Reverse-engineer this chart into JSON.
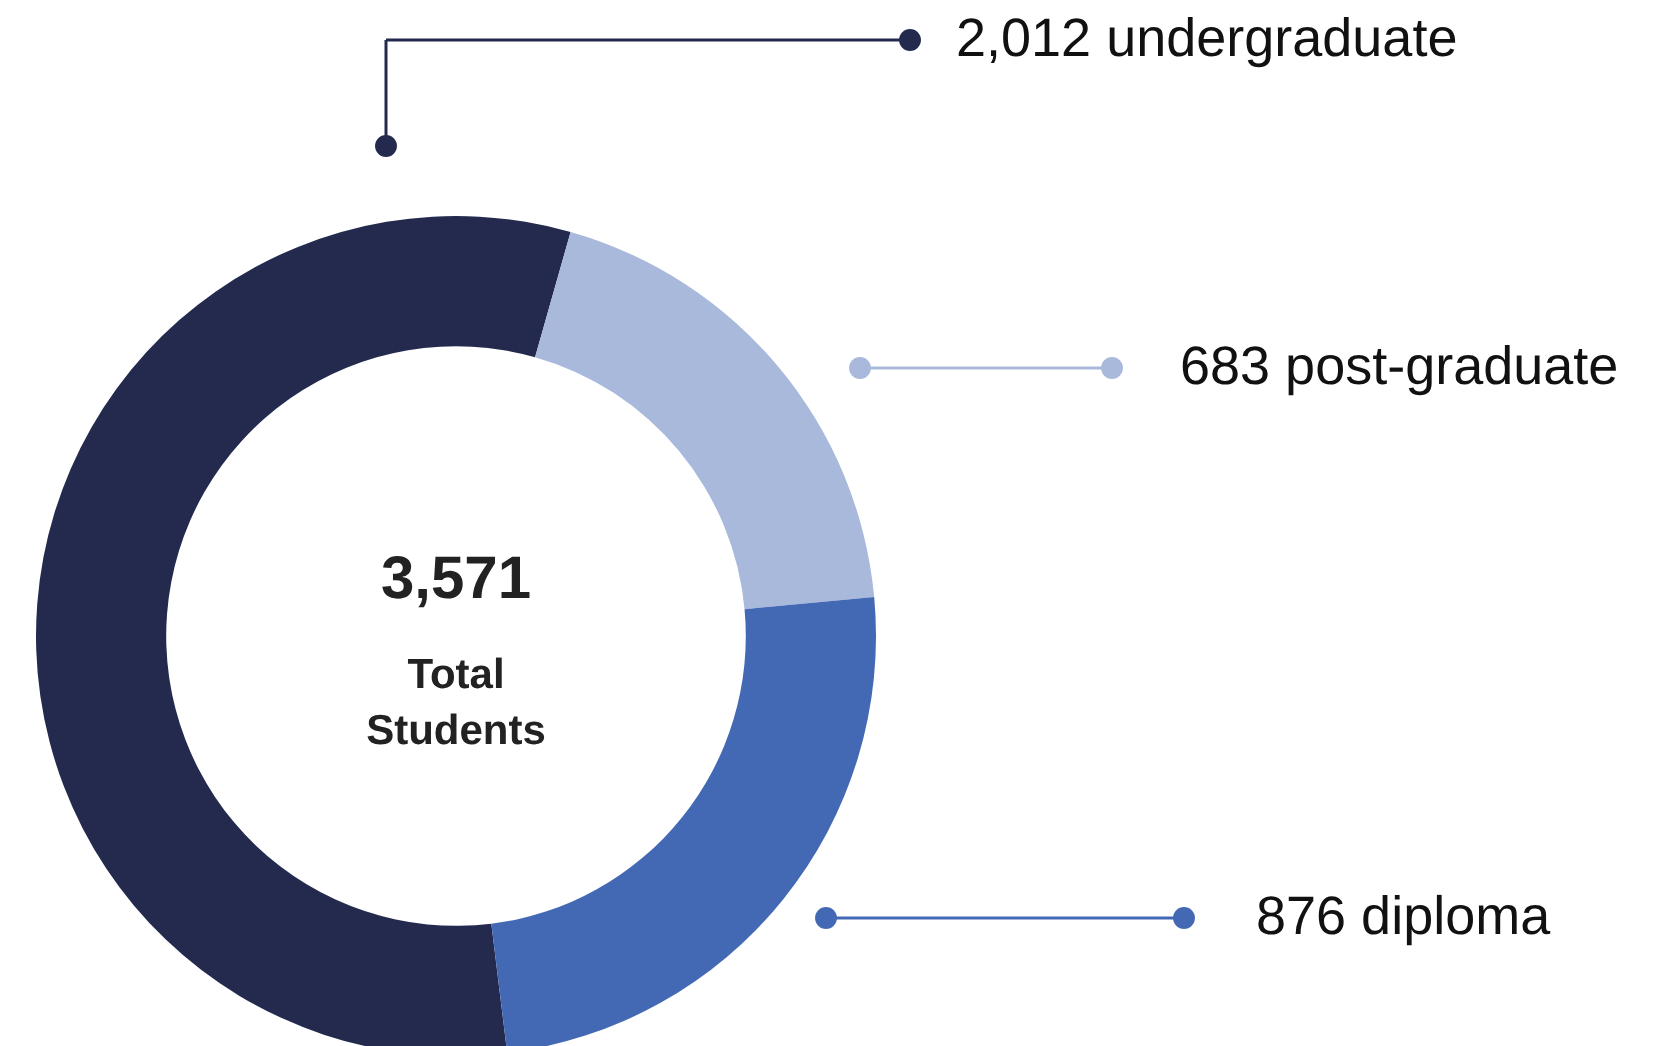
{
  "chart_data": {
    "type": "donut",
    "categories": [
      "undergraduate",
      "post-graduate",
      "diploma"
    ],
    "values": [
      2012,
      683,
      876
    ],
    "value_labels": [
      "2,012",
      "683",
      "876"
    ],
    "colors": [
      "#232a4e",
      "#a9b9dc",
      "#4469b4"
    ],
    "annotations": [
      "3,571",
      "Total Students"
    ],
    "legend": "right"
  }
}
